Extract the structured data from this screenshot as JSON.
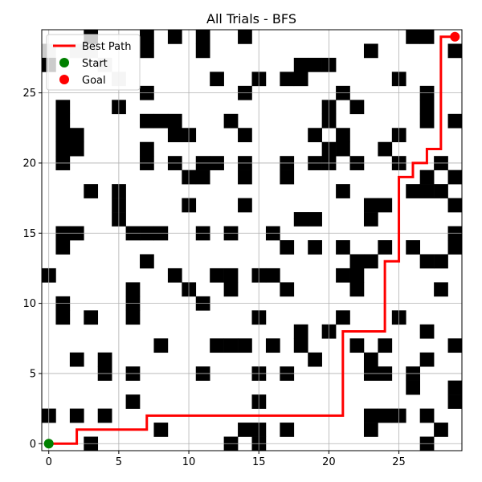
{
  "chart_data": {
    "type": "scatter",
    "title": "All Trials - BFS",
    "xlabel": "",
    "ylabel": "",
    "xlim": [
      -0.5,
      29.5
    ],
    "ylim": [
      -0.5,
      29.5
    ],
    "x_ticks": [
      0,
      5,
      10,
      15,
      20,
      25
    ],
    "y_ticks": [
      0,
      5,
      10,
      15,
      20,
      25
    ],
    "grid": true,
    "legend_position": "top-left",
    "obstacle_color": "#000000",
    "visited_color": "#cccccc",
    "obstacles": [
      [
        3,
        29
      ],
      [
        7,
        29
      ],
      [
        9,
        29
      ],
      [
        11,
        29
      ],
      [
        14,
        29
      ],
      [
        26,
        29
      ],
      [
        27,
        29
      ],
      [
        7,
        28
      ],
      [
        11,
        28
      ],
      [
        23,
        28
      ],
      [
        29,
        28
      ],
      [
        0,
        27
      ],
      [
        18,
        27
      ],
      [
        19,
        27
      ],
      [
        20,
        27
      ],
      [
        12,
        26
      ],
      [
        15,
        26
      ],
      [
        17,
        26
      ],
      [
        18,
        26
      ],
      [
        25,
        26
      ],
      [
        7,
        25
      ],
      [
        14,
        25
      ],
      [
        21,
        25
      ],
      [
        27,
        25
      ],
      [
        1,
        24
      ],
      [
        5,
        24
      ],
      [
        20,
        24
      ],
      [
        22,
        24
      ],
      [
        27,
        24
      ],
      [
        1,
        23
      ],
      [
        7,
        23
      ],
      [
        8,
        23
      ],
      [
        9,
        23
      ],
      [
        13,
        23
      ],
      [
        20,
        23
      ],
      [
        27,
        23
      ],
      [
        29,
        23
      ],
      [
        1,
        22
      ],
      [
        2,
        22
      ],
      [
        9,
        22
      ],
      [
        10,
        22
      ],
      [
        14,
        22
      ],
      [
        19,
        22
      ],
      [
        21,
        22
      ],
      [
        25,
        22
      ],
      [
        1,
        21
      ],
      [
        2,
        21
      ],
      [
        7,
        21
      ],
      [
        20,
        21
      ],
      [
        21,
        21
      ],
      [
        24,
        21
      ],
      [
        1,
        20
      ],
      [
        7,
        20
      ],
      [
        9,
        20
      ],
      [
        11,
        20
      ],
      [
        12,
        20
      ],
      [
        14,
        20
      ],
      [
        17,
        20
      ],
      [
        19,
        20
      ],
      [
        20,
        20
      ],
      [
        22,
        20
      ],
      [
        25,
        20
      ],
      [
        28,
        20
      ],
      [
        10,
        19
      ],
      [
        11,
        19
      ],
      [
        14,
        19
      ],
      [
        17,
        19
      ],
      [
        27,
        19
      ],
      [
        29,
        19
      ],
      [
        3,
        18
      ],
      [
        5,
        18
      ],
      [
        21,
        18
      ],
      [
        26,
        18
      ],
      [
        27,
        18
      ],
      [
        28,
        18
      ],
      [
        5,
        17
      ],
      [
        10,
        17
      ],
      [
        14,
        17
      ],
      [
        23,
        17
      ],
      [
        24,
        17
      ],
      [
        29,
        17
      ],
      [
        5,
        16
      ],
      [
        18,
        16
      ],
      [
        19,
        16
      ],
      [
        23,
        16
      ],
      [
        1,
        15
      ],
      [
        2,
        15
      ],
      [
        6,
        15
      ],
      [
        7,
        15
      ],
      [
        8,
        15
      ],
      [
        11,
        15
      ],
      [
        13,
        15
      ],
      [
        16,
        15
      ],
      [
        29,
        15
      ],
      [
        1,
        14
      ],
      [
        17,
        14
      ],
      [
        19,
        14
      ],
      [
        21,
        14
      ],
      [
        24,
        14
      ],
      [
        26,
        14
      ],
      [
        29,
        14
      ],
      [
        7,
        13
      ],
      [
        22,
        13
      ],
      [
        23,
        13
      ],
      [
        27,
        13
      ],
      [
        28,
        13
      ],
      [
        0,
        12
      ],
      [
        9,
        12
      ],
      [
        12,
        12
      ],
      [
        13,
        12
      ],
      [
        15,
        12
      ],
      [
        16,
        12
      ],
      [
        21,
        12
      ],
      [
        22,
        12
      ],
      [
        6,
        11
      ],
      [
        10,
        11
      ],
      [
        13,
        11
      ],
      [
        17,
        11
      ],
      [
        22,
        11
      ],
      [
        28,
        11
      ],
      [
        1,
        10
      ],
      [
        6,
        10
      ],
      [
        11,
        10
      ],
      [
        1,
        9
      ],
      [
        3,
        9
      ],
      [
        6,
        9
      ],
      [
        15,
        9
      ],
      [
        21,
        9
      ],
      [
        25,
        9
      ],
      [
        18,
        8
      ],
      [
        20,
        8
      ],
      [
        27,
        8
      ],
      [
        8,
        7
      ],
      [
        12,
        7
      ],
      [
        13,
        7
      ],
      [
        14,
        7
      ],
      [
        16,
        7
      ],
      [
        18,
        7
      ],
      [
        22,
        7
      ],
      [
        24,
        7
      ],
      [
        29,
        7
      ],
      [
        2,
        6
      ],
      [
        4,
        6
      ],
      [
        19,
        6
      ],
      [
        23,
        6
      ],
      [
        27,
        6
      ],
      [
        4,
        5
      ],
      [
        6,
        5
      ],
      [
        11,
        5
      ],
      [
        15,
        5
      ],
      [
        17,
        5
      ],
      [
        23,
        5
      ],
      [
        24,
        5
      ],
      [
        26,
        5
      ],
      [
        26,
        4
      ],
      [
        29,
        4
      ],
      [
        6,
        3
      ],
      [
        15,
        3
      ],
      [
        29,
        3
      ],
      [
        0,
        2
      ],
      [
        2,
        2
      ],
      [
        4,
        2
      ],
      [
        23,
        2
      ],
      [
        24,
        2
      ],
      [
        25,
        2
      ],
      [
        27,
        2
      ],
      [
        8,
        1
      ],
      [
        14,
        1
      ],
      [
        15,
        1
      ],
      [
        17,
        1
      ],
      [
        23,
        1
      ],
      [
        28,
        1
      ],
      [
        3,
        0
      ],
      [
        13,
        0
      ],
      [
        15,
        0
      ],
      [
        27,
        0
      ]
    ],
    "visited": [
      [
        0,
        28
      ],
      [
        2,
        28
      ],
      [
        3,
        28
      ],
      [
        4,
        27
      ],
      [
        5,
        26
      ]
    ],
    "series": [
      {
        "name": "Best Path",
        "type": "line",
        "color": "#ff0000",
        "points": [
          [
            0,
            0
          ],
          [
            2,
            0
          ],
          [
            2,
            1
          ],
          [
            7,
            1
          ],
          [
            7,
            2
          ],
          [
            21,
            2
          ],
          [
            21,
            8
          ],
          [
            24,
            8
          ],
          [
            24,
            13
          ],
          [
            25,
            13
          ],
          [
            25,
            19
          ],
          [
            26,
            19
          ],
          [
            26,
            20
          ],
          [
            27,
            20
          ],
          [
            27,
            21
          ],
          [
            28,
            21
          ],
          [
            28,
            29
          ],
          [
            29,
            29
          ]
        ]
      },
      {
        "name": "Start",
        "type": "marker",
        "color": "#008000",
        "points": [
          [
            0,
            0
          ]
        ]
      },
      {
        "name": "Goal",
        "type": "marker",
        "color": "#ff0000",
        "points": [
          [
            29,
            29
          ]
        ]
      }
    ]
  }
}
